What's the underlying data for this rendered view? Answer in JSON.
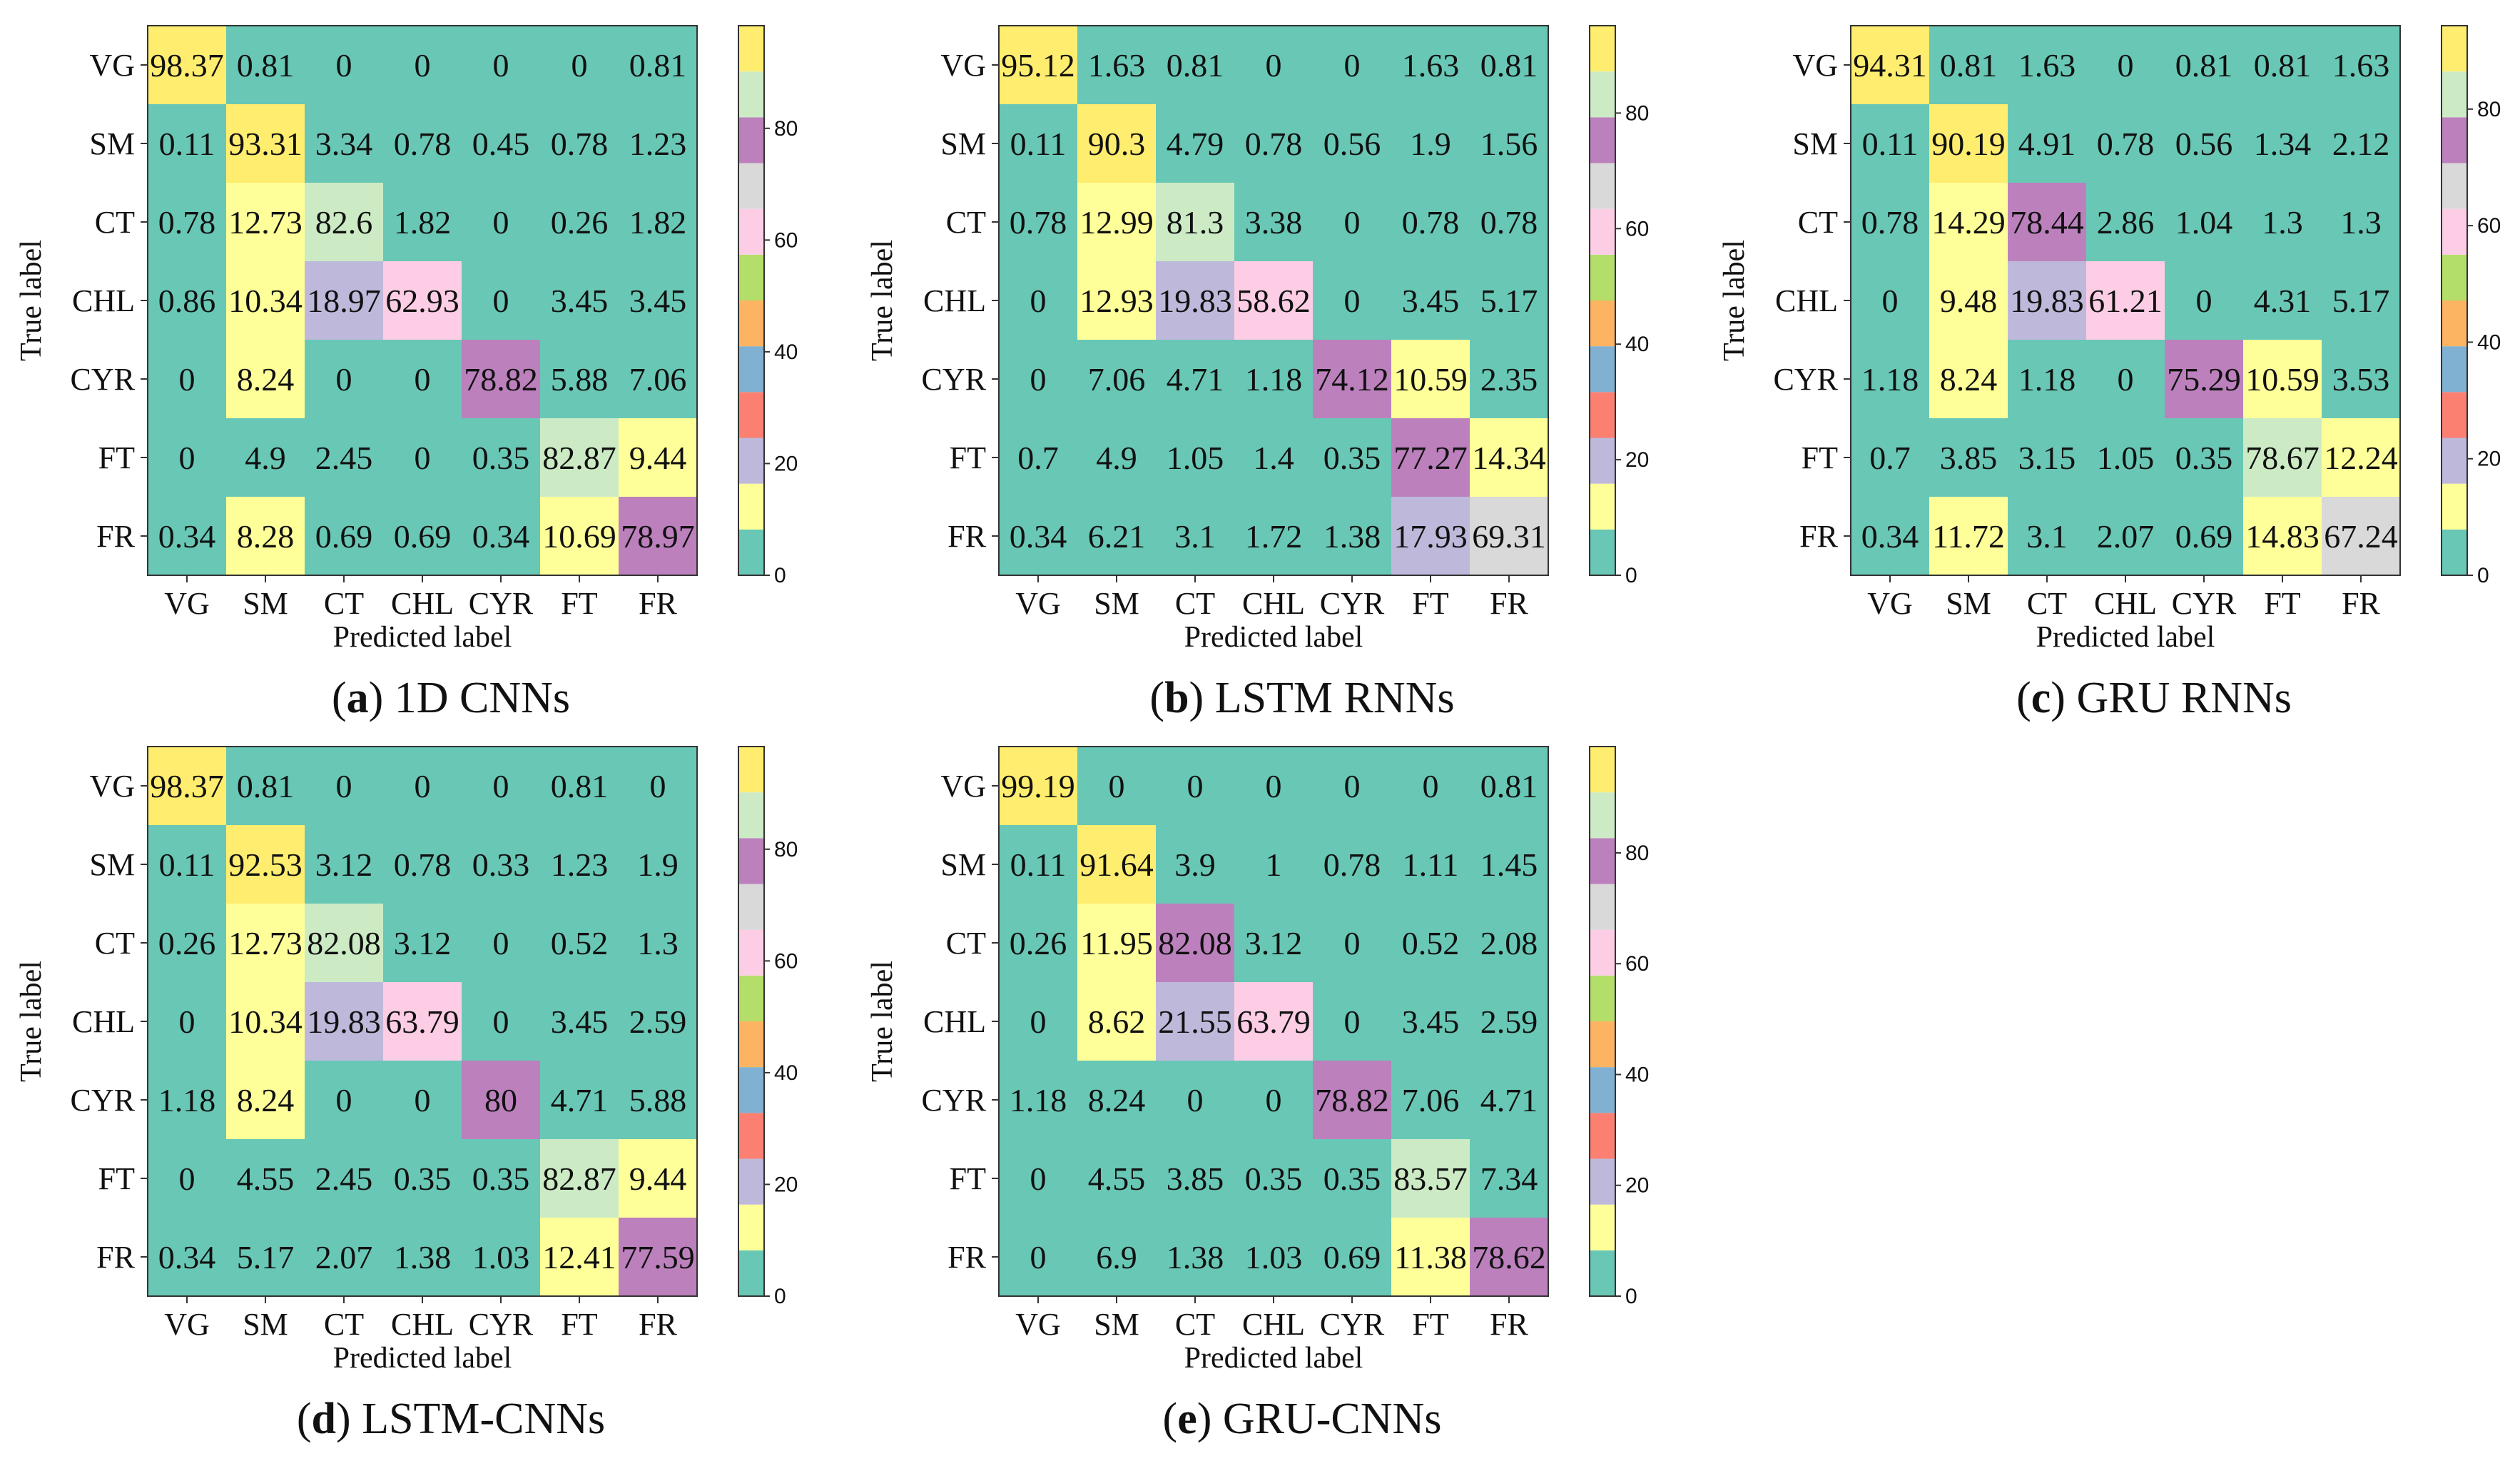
{
  "figure": {
    "type": "confusion_matrix_grid",
    "panel_count": 5
  },
  "colormap": {
    "name": "Set3-like qualitative",
    "bins": [
      "#69c7b5",
      "#ffff99",
      "#beb9db",
      "#fb8072",
      "#80b1d3",
      "#fdb462",
      "#b3de69",
      "#fccde5",
      "#d9d9d9",
      "#bc80bd",
      "#ccebc5",
      "#ffed6f"
    ],
    "range": [
      0,
      100
    ]
  },
  "chart_data": [
    {
      "type": "heatmap",
      "panel_letter": "a",
      "title": "1D CNNs",
      "xlabel": "Predicted label",
      "ylabel": "True label",
      "classes": [
        "VG",
        "SM",
        "CT",
        "CHL",
        "CYR",
        "FT",
        "FR"
      ],
      "colorbar_ticks": [
        0,
        20,
        40,
        60,
        80
      ],
      "vmin": 0,
      "vmax": 98.37,
      "matrix": [
        [
          98.37,
          0.81,
          0.0,
          0.0,
          0.0,
          0.0,
          0.81
        ],
        [
          0.11,
          93.31,
          3.34,
          0.78,
          0.45,
          0.78,
          1.23
        ],
        [
          0.78,
          12.73,
          82.6,
          1.82,
          0.0,
          0.26,
          1.82
        ],
        [
          0.86,
          10.34,
          18.97,
          62.93,
          0.0,
          3.45,
          3.45
        ],
        [
          0.0,
          8.24,
          0.0,
          0.0,
          78.82,
          5.88,
          7.06
        ],
        [
          0.0,
          4.9,
          2.45,
          0.0,
          0.35,
          82.87,
          9.44
        ],
        [
          0.34,
          8.28,
          0.69,
          0.69,
          0.34,
          10.69,
          78.97
        ]
      ]
    },
    {
      "type": "heatmap",
      "panel_letter": "b",
      "title": "LSTM RNNs",
      "xlabel": "Predicted label",
      "ylabel": "True label",
      "classes": [
        "VG",
        "SM",
        "CT",
        "CHL",
        "CYR",
        "FT",
        "FR"
      ],
      "colorbar_ticks": [
        0,
        20,
        40,
        60,
        80
      ],
      "vmin": 0,
      "vmax": 95.12,
      "matrix": [
        [
          95.12,
          1.63,
          0.81,
          0.0,
          0.0,
          1.63,
          0.81
        ],
        [
          0.11,
          90.3,
          4.79,
          0.78,
          0.56,
          1.9,
          1.56
        ],
        [
          0.78,
          12.99,
          81.3,
          3.38,
          0.0,
          0.78,
          0.78
        ],
        [
          0.0,
          12.93,
          19.83,
          58.62,
          0.0,
          3.45,
          5.17
        ],
        [
          0.0,
          7.06,
          4.71,
          1.18,
          74.12,
          10.59,
          2.35
        ],
        [
          0.7,
          4.9,
          1.05,
          1.4,
          0.35,
          77.27,
          14.34
        ],
        [
          0.34,
          6.21,
          3.1,
          1.72,
          1.38,
          17.93,
          69.31
        ]
      ]
    },
    {
      "type": "heatmap",
      "panel_letter": "c",
      "title": "GRU RNNs",
      "xlabel": "Predicted label",
      "ylabel": "True label",
      "classes": [
        "VG",
        "SM",
        "CT",
        "CHL",
        "CYR",
        "FT",
        "FR"
      ],
      "colorbar_ticks": [
        0,
        20,
        40,
        60,
        80
      ],
      "vmin": 0,
      "vmax": 94.31,
      "matrix": [
        [
          94.31,
          0.81,
          1.63,
          0.0,
          0.81,
          0.81,
          1.63
        ],
        [
          0.11,
          90.19,
          4.91,
          0.78,
          0.56,
          1.34,
          2.12
        ],
        [
          0.78,
          14.29,
          78.44,
          2.86,
          1.04,
          1.3,
          1.3
        ],
        [
          0.0,
          9.48,
          19.83,
          61.21,
          0.0,
          4.31,
          5.17
        ],
        [
          1.18,
          8.24,
          1.18,
          0.0,
          75.29,
          10.59,
          3.53
        ],
        [
          0.7,
          3.85,
          3.15,
          1.05,
          0.35,
          78.67,
          12.24
        ],
        [
          0.34,
          11.72,
          3.1,
          2.07,
          0.69,
          14.83,
          67.24
        ]
      ]
    },
    {
      "type": "heatmap",
      "panel_letter": "d",
      "title": "LSTM-CNNs",
      "xlabel": "Predicted label",
      "ylabel": "True label",
      "classes": [
        "VG",
        "SM",
        "CT",
        "CHL",
        "CYR",
        "FT",
        "FR"
      ],
      "colorbar_ticks": [
        0,
        20,
        40,
        60,
        80
      ],
      "vmin": 0,
      "vmax": 98.37,
      "matrix": [
        [
          98.37,
          0.81,
          0.0,
          0.0,
          0.0,
          0.81,
          0.0
        ],
        [
          0.11,
          92.53,
          3.12,
          0.78,
          0.33,
          1.23,
          1.9
        ],
        [
          0.26,
          12.73,
          82.08,
          3.12,
          0.0,
          0.52,
          1.3
        ],
        [
          0.0,
          10.34,
          19.83,
          63.79,
          0.0,
          3.45,
          2.59
        ],
        [
          1.18,
          8.24,
          0.0,
          0.0,
          80.0,
          4.71,
          5.88
        ],
        [
          0.0,
          4.55,
          2.45,
          0.35,
          0.35,
          82.87,
          9.44
        ],
        [
          0.34,
          5.17,
          2.07,
          1.38,
          1.03,
          12.41,
          77.59
        ]
      ]
    },
    {
      "type": "heatmap",
      "panel_letter": "e",
      "title": "GRU-CNNs",
      "xlabel": "Predicted label",
      "ylabel": "True label",
      "classes": [
        "VG",
        "SM",
        "CT",
        "CHL",
        "CYR",
        "FT",
        "FR"
      ],
      "colorbar_ticks": [
        0,
        20,
        40,
        60,
        80
      ],
      "vmin": 0,
      "vmax": 99.19,
      "matrix": [
        [
          99.19,
          0.0,
          0.0,
          0.0,
          0.0,
          0.0,
          0.81
        ],
        [
          0.11,
          91.64,
          3.9,
          1.0,
          0.78,
          1.11,
          1.45
        ],
        [
          0.26,
          11.95,
          82.08,
          3.12,
          0.0,
          0.52,
          2.08
        ],
        [
          0.0,
          8.62,
          21.55,
          63.79,
          0.0,
          3.45,
          2.59
        ],
        [
          1.18,
          8.24,
          0.0,
          0.0,
          78.82,
          7.06,
          4.71
        ],
        [
          0.0,
          4.55,
          3.85,
          0.35,
          0.35,
          83.57,
          7.34
        ],
        [
          0.0,
          6.9,
          1.38,
          1.03,
          0.69,
          11.38,
          78.62
        ]
      ]
    }
  ]
}
